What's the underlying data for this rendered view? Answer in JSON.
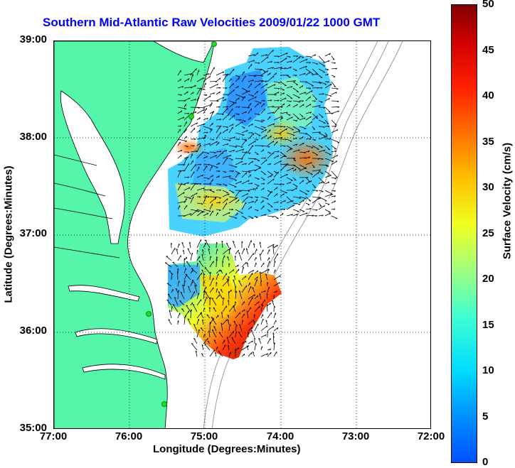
{
  "title": "Southern Mid-Atlantic Raw Velocities 2009/01/22 1000 GMT",
  "axes": {
    "xlabel": "Longitude (Degrees:Minutes)",
    "ylabel": "Latitude (Degrees:Minutes)",
    "xticks": [
      "77:00",
      "76:00",
      "75:00",
      "74:00",
      "73:00",
      "72:00"
    ],
    "yticks": [
      "39:00",
      "38:00",
      "37:00",
      "36:00",
      "35:00"
    ],
    "xlim": [
      -77,
      -72
    ],
    "ylim": [
      35,
      39
    ],
    "grid": "dotted"
  },
  "colorbar": {
    "label": "Surface Velocity (cm/s)",
    "ticks": [
      "50",
      "45",
      "40",
      "35",
      "30",
      "25",
      "20",
      "15",
      "10",
      "5",
      "0"
    ],
    "range": [
      0,
      50
    ],
    "colormap": "jet"
  },
  "colors": {
    "land": "#55f5aa",
    "title": "#0000ff",
    "bathymetry": "#999999",
    "stations": "#22dd22"
  }
}
